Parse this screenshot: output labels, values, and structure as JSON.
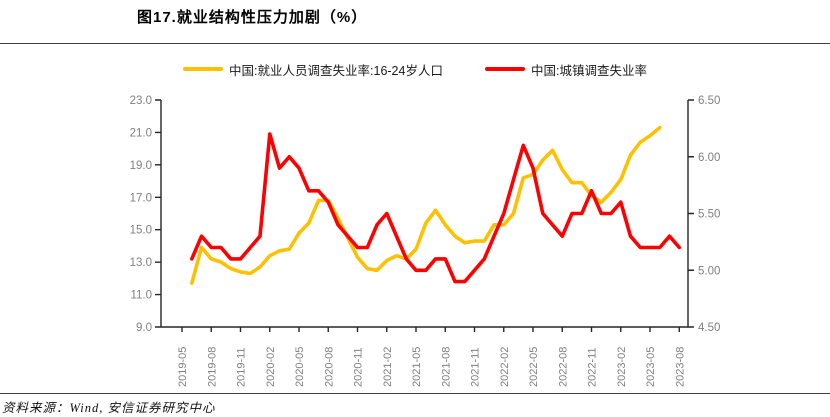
{
  "page": {
    "title": "图17.就业结构性压力加剧（%）",
    "source": "资料来源：Wind, 安信证券研究中心"
  },
  "legend": {
    "items": [
      {
        "label": "中国:就业人员调查失业率:16-24岁人口",
        "color": "#FFC000"
      },
      {
        "label": "中国:城镇调查失业率",
        "color": "#FF0000"
      }
    ]
  },
  "chart_data": {
    "type": "line",
    "title": "图17.就业结构性压力加剧（%）",
    "legend_position": "top",
    "grid": false,
    "x_tick_labels": [
      "2019-05",
      "2019-08",
      "2019-11",
      "2020-02",
      "2020-05",
      "2020-08",
      "2020-11",
      "2021-02",
      "2021-05",
      "2021-08",
      "2021-11",
      "2022-02",
      "2022-05",
      "2022-08",
      "2022-11",
      "2023-02",
      "2023-05",
      "2023-08"
    ],
    "left_axis": {
      "min": 9.0,
      "max": 23.0,
      "ticks": [
        "23.0",
        "21.0",
        "19.0",
        "17.0",
        "15.0",
        "13.0",
        "11.0",
        "9.0"
      ]
    },
    "right_axis": {
      "min": 4.5,
      "max": 6.5,
      "ticks": [
        "6.50",
        "6.00",
        "5.50",
        "5.00",
        "4.50"
      ]
    },
    "tick_color": "#808080",
    "axis_color": "#262626",
    "series": [
      {
        "name": "中国:就业人员调查失业率:16-24岁人口",
        "axis": "left",
        "color": "#FFC000",
        "start_month": "2019-06",
        "offset_months": 1,
        "values": [
          11.7,
          13.9,
          13.2,
          13.0,
          12.6,
          12.4,
          12.3,
          12.7,
          13.4,
          13.7,
          13.8,
          14.8,
          15.4,
          16.8,
          16.8,
          15.7,
          14.5,
          13.3,
          12.6,
          12.5,
          13.1,
          13.4,
          13.2,
          13.8,
          15.4,
          16.2,
          15.3,
          14.6,
          14.2,
          14.3,
          14.3,
          15.3,
          15.3,
          16.0,
          18.2,
          18.4,
          19.3,
          19.9,
          18.7,
          17.9,
          17.9,
          17.1,
          16.7,
          17.3,
          18.1,
          19.6,
          20.4,
          20.8,
          21.3
        ]
      },
      {
        "name": "中国:城镇调查失业率",
        "axis": "right",
        "color": "#FF0000",
        "start_month": "2019-06",
        "offset_months": 1,
        "values": [
          5.1,
          5.3,
          5.2,
          5.2,
          5.1,
          5.1,
          5.2,
          5.3,
          6.2,
          5.9,
          6.0,
          5.9,
          5.7,
          5.7,
          5.6,
          5.4,
          5.3,
          5.2,
          5.2,
          5.4,
          5.5,
          5.3,
          5.1,
          5.0,
          5.0,
          5.1,
          5.1,
          4.9,
          4.9,
          5.0,
          5.1,
          5.3,
          5.5,
          5.8,
          6.1,
          5.9,
          5.5,
          5.4,
          5.3,
          5.5,
          5.5,
          5.7,
          5.5,
          5.5,
          5.6,
          5.3,
          5.2,
          5.2,
          5.2,
          5.3,
          5.2
        ]
      }
    ]
  }
}
